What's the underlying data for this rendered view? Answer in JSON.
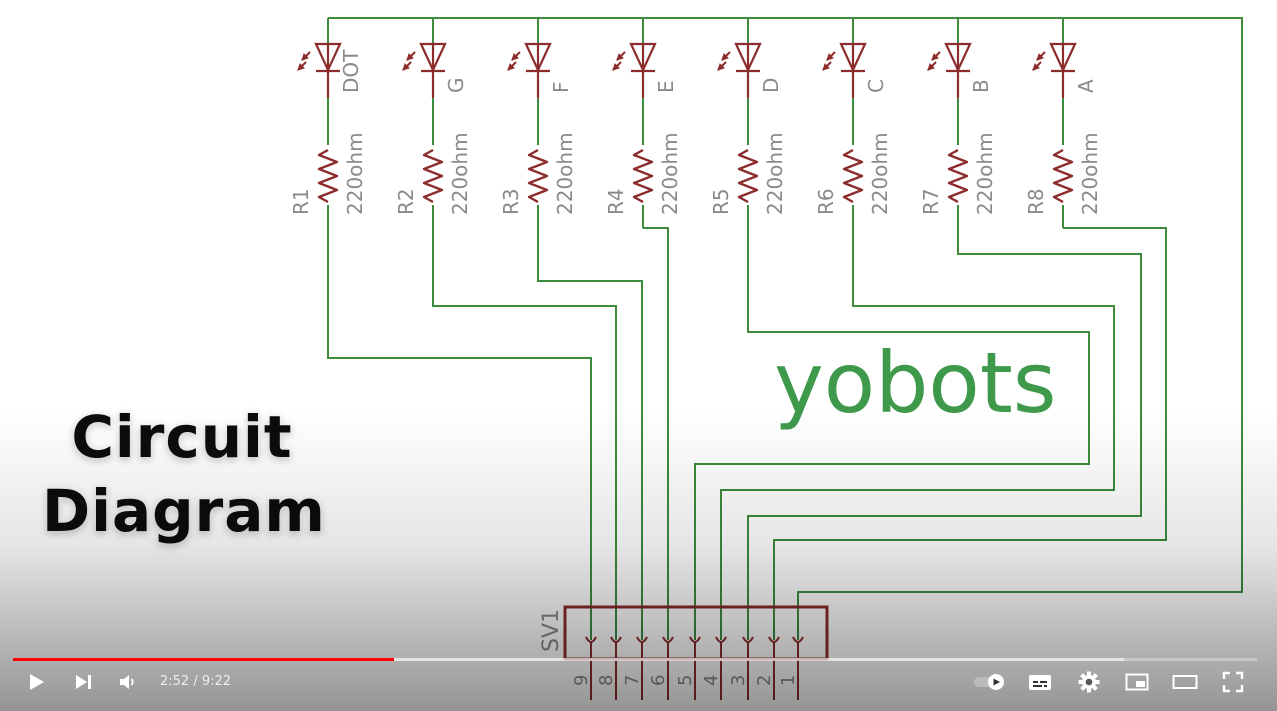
{
  "video": {
    "overlay_title": [
      "Circuit",
      "Diagram"
    ],
    "brand": "yobots",
    "leds": [
      "DOT",
      "G",
      "F",
      "E",
      "D",
      "C",
      "B",
      "A"
    ],
    "resistors": [
      "R1",
      "R2",
      "R3",
      "R4",
      "R5",
      "R6",
      "R7",
      "R8"
    ],
    "resistor_value": "220ohm",
    "connector": "SV1",
    "connector_pins": [
      "9",
      "8",
      "7",
      "6",
      "5",
      "4",
      "3",
      "2",
      "1"
    ]
  },
  "player": {
    "current_time": "2:52",
    "duration": "9:22",
    "time_separator": " / ",
    "progress_fraction": 0.306,
    "colors": {
      "progress": "#ff0000",
      "wire": "#3c8c3c",
      "part": "#8c2c2c",
      "label": "#8a8a8a",
      "brand": "#3e9a4a"
    },
    "icons": [
      "play-icon",
      "next-icon",
      "volume-icon",
      "autoplay-toggle-icon",
      "subtitles-icon",
      "settings-gear-icon",
      "miniplayer-icon",
      "theater-mode-icon",
      "fullscreen-icon"
    ]
  }
}
